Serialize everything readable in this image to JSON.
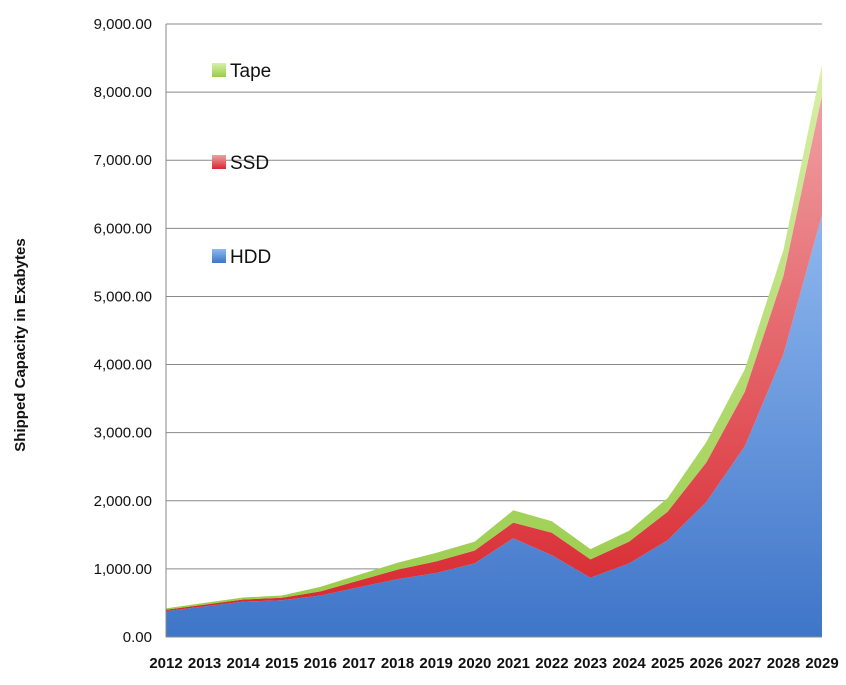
{
  "chart_data": {
    "type": "area",
    "stacked": true,
    "title": "",
    "xlabel": "",
    "ylabel": "Shipped Capacity in Exabytes",
    "ylim": [
      0,
      9000
    ],
    "yticks": [
      "0.00",
      "1,000.00",
      "2,000.00",
      "3,000.00",
      "4,000.00",
      "5,000.00",
      "6,000.00",
      "7,000.00",
      "8,000.00",
      "9,000.00"
    ],
    "categories": [
      "2012",
      "2013",
      "2014",
      "2015",
      "2016",
      "2017",
      "2018",
      "2019",
      "2020",
      "2021",
      "2022",
      "2023",
      "2024",
      "2025",
      "2026",
      "2027",
      "2028",
      "2029"
    ],
    "grid": true,
    "legend_position": "top-left",
    "series": [
      {
        "name": "HDD",
        "color": "#4f86d4",
        "values": [
          380,
          450,
          520,
          540,
          610,
          730,
          850,
          940,
          1080,
          1450,
          1200,
          870,
          1080,
          1420,
          1980,
          2800,
          4150,
          6200
        ]
      },
      {
        "name": "SSD",
        "color": "#e0333d",
        "values": [
          20,
          25,
          30,
          35,
          60,
          100,
          140,
          170,
          190,
          230,
          330,
          270,
          320,
          420,
          580,
          800,
          1150,
          1750
        ]
      },
      {
        "name": "Tape",
        "color": "#a8d85c",
        "values": [
          20,
          25,
          30,
          35,
          65,
          85,
          100,
          125,
          130,
          180,
          170,
          150,
          160,
          200,
          300,
          330,
          380,
          450
        ]
      }
    ],
    "legend_order": [
      "Tape",
      "SSD",
      "HDD"
    ]
  }
}
